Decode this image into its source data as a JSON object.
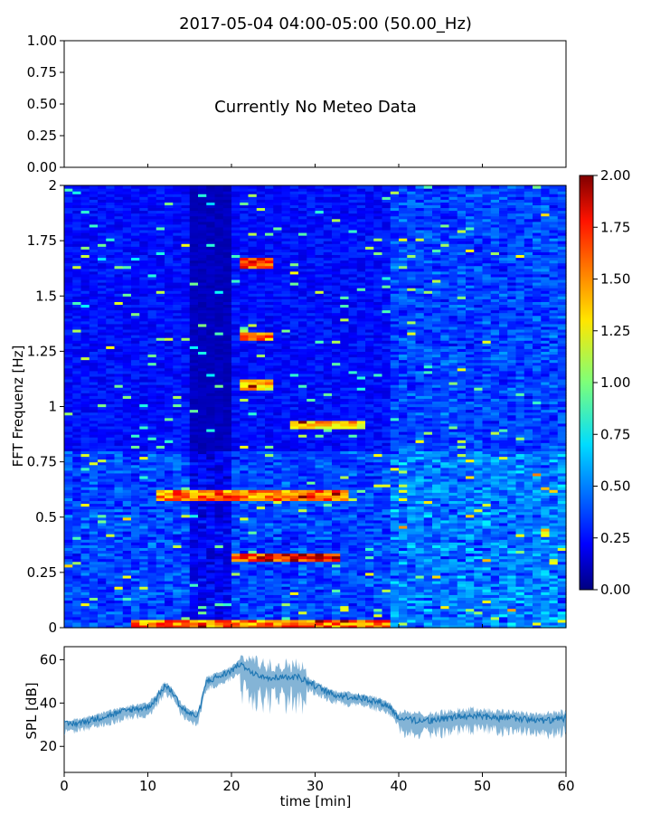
{
  "title": "2017-05-04 04:00-05:00 (50.00_Hz)",
  "meteo": {
    "message": "Currently No Meteo Data",
    "ytick_labels": [
      "1.00",
      "0.75",
      "0.50",
      "0.25",
      "0.00"
    ]
  },
  "spectrogram": {
    "ylabel": "FFT Frequenz [Hz]",
    "ytick_labels": [
      "2",
      "1.75",
      "1.5",
      "1.25",
      "1",
      "0.75",
      "0.5",
      "0.25",
      "0"
    ],
    "colormap": "jet"
  },
  "colorbar": {
    "tick_labels": [
      "2.00",
      "1.75",
      "1.50",
      "1.25",
      "1.00",
      "0.75",
      "0.50",
      "0.25",
      "0.00"
    ]
  },
  "spl": {
    "ylabel": "SPL [dB]",
    "xlabel": "time [min]",
    "ytick_labels": [
      "60",
      "40",
      "20"
    ],
    "xtick_labels": [
      "0",
      "10",
      "20",
      "30",
      "40",
      "50",
      "60"
    ],
    "line_color": "#1f77b4"
  },
  "chart_data": [
    {
      "type": "line",
      "panel": "meteo",
      "series": [],
      "xlim": [
        0,
        60
      ],
      "ylim": [
        0,
        1
      ],
      "annotation": "Currently No Meteo Data"
    },
    {
      "type": "heatmap",
      "panel": "spectrogram",
      "xlim": [
        0,
        60
      ],
      "ylim": [
        0,
        2
      ],
      "zlim": [
        0,
        2
      ],
      "colormap": "jet",
      "ylabel": "FFT Frequenz [Hz]",
      "features": [
        {
          "t_start": 11,
          "t_end": 34,
          "f": 0.6,
          "peak": 1.8
        },
        {
          "t_start": 20,
          "t_end": 33,
          "f": 0.32,
          "peak": 2.0
        },
        {
          "t_start": 21,
          "t_end": 25,
          "f": 1.65,
          "peak": 1.9
        },
        {
          "t_start": 21,
          "t_end": 25,
          "f": 1.32,
          "peak": 1.8
        },
        {
          "t_start": 21,
          "t_end": 25,
          "f": 1.1,
          "peak": 1.6
        },
        {
          "t_start": 27,
          "t_end": 36,
          "f": 0.92,
          "peak": 1.6
        },
        {
          "t_start": 8,
          "t_end": 39,
          "f": 0.02,
          "peak": 1.8
        }
      ]
    },
    {
      "type": "line",
      "panel": "spl",
      "xlabel": "time [min]",
      "ylabel": "SPL [dB]",
      "xlim": [
        0,
        60
      ],
      "ylim": [
        8,
        66
      ],
      "x": [
        0,
        2,
        4,
        6,
        8,
        10,
        11,
        12,
        13,
        14,
        15,
        16,
        17,
        19,
        20,
        21,
        22,
        24,
        26,
        28,
        29,
        30,
        31,
        32,
        34,
        36,
        38,
        39,
        40,
        42,
        44,
        46,
        48,
        50,
        52,
        54,
        56,
        58,
        60
      ],
      "y": [
        30,
        31,
        33,
        35,
        37,
        38,
        42,
        48,
        45,
        38,
        35,
        34,
        50,
        53,
        55,
        58,
        55,
        52,
        52,
        52,
        50,
        48,
        46,
        44,
        43,
        42,
        40,
        38,
        33,
        32,
        32,
        33,
        34,
        34,
        33,
        33,
        32,
        32,
        33
      ]
    }
  ]
}
